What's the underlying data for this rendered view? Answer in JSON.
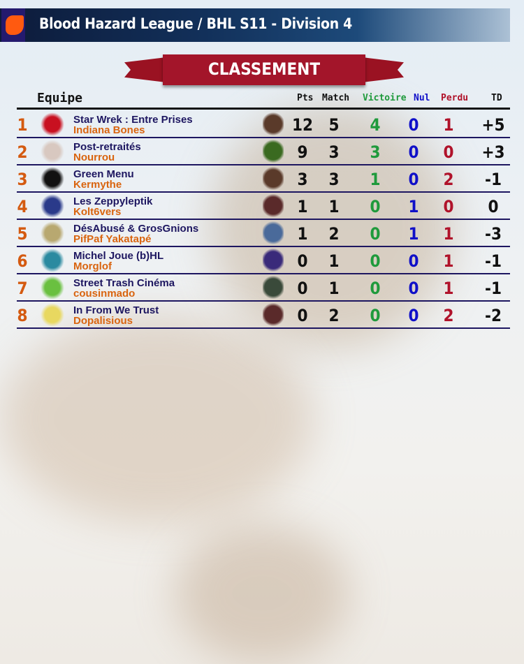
{
  "header": {
    "title": "Blood Hazard League / BHL S11 - Division 4",
    "logo_icon": "flame-logo-icon"
  },
  "banner": {
    "label": "CLASSEMENT"
  },
  "columns": {
    "team": "Equipe",
    "pts": "Pts",
    "match": "Match",
    "win": "Victoire",
    "draw": "Nul",
    "loss": "Perdu",
    "td": "TD"
  },
  "colors": {
    "win": "#1f9a3c",
    "draw": "#1010c8",
    "loss": "#b0122a",
    "rank": "#d45a10",
    "team": "#1d1660",
    "coach": "#d9640f"
  },
  "rows": [
    {
      "rank": "1",
      "team": "Star Wrek : Entre Prises",
      "coach": "Indiana Bones",
      "pts": "12",
      "match": "5",
      "win": "4",
      "draw": "0",
      "loss": "1",
      "td": "+5",
      "logo_color": "#c81020",
      "race_color": "#5a3a2a"
    },
    {
      "rank": "2",
      "team": "Post-retraités",
      "coach": "Nourrou",
      "pts": "9",
      "match": "3",
      "win": "3",
      "draw": "0",
      "loss": "0",
      "td": "+3",
      "logo_color": "#d8c8c0",
      "race_color": "#3a6a20"
    },
    {
      "rank": "3",
      "team": "Green Menu",
      "coach": "Kermythe",
      "pts": "3",
      "match": "3",
      "win": "1",
      "draw": "0",
      "loss": "2",
      "td": "-1",
      "logo_color": "#111111",
      "race_color": "#5a3a2a"
    },
    {
      "rank": "4",
      "team": "Les Zeppyleptik",
      "coach": "Kolt6vers",
      "pts": "1",
      "match": "1",
      "win": "0",
      "draw": "1",
      "loss": "0",
      "td": "0",
      "logo_color": "#2a3a8a",
      "race_color": "#5a2a2a"
    },
    {
      "rank": "5",
      "team": "DésAbusé & GrosGnions",
      "coach": "PifPaf Yakatapé",
      "pts": "1",
      "match": "2",
      "win": "0",
      "draw": "1",
      "loss": "1",
      "td": "-3",
      "logo_color": "#b8a870",
      "race_color": "#4a6a9a"
    },
    {
      "rank": "6",
      "team": "Michel Joue (b)HL",
      "coach": "Morglof",
      "pts": "0",
      "match": "1",
      "win": "0",
      "draw": "0",
      "loss": "1",
      "td": "-1",
      "logo_color": "#2a8aa0",
      "race_color": "#3a2a7a"
    },
    {
      "rank": "7",
      "team": "Street Trash Cinéma",
      "coach": "cousinmado",
      "pts": "0",
      "match": "1",
      "win": "0",
      "draw": "0",
      "loss": "1",
      "td": "-1",
      "logo_color": "#6ac040",
      "race_color": "#3a4a3a"
    },
    {
      "rank": "8",
      "team": "In From We Trust",
      "coach": "Dopalisious",
      "pts": "0",
      "match": "2",
      "win": "0",
      "draw": "0",
      "loss": "2",
      "td": "-2",
      "logo_color": "#e8d860",
      "race_color": "#5a2a2a"
    }
  ]
}
